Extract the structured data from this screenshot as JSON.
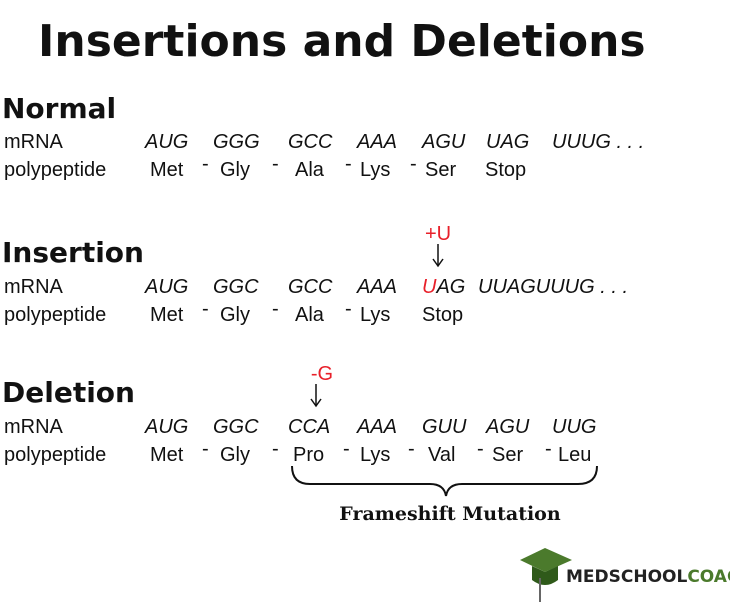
{
  "title": "Insertions and Deletions",
  "separator": "-",
  "sections": [
    {
      "heading": "Normal",
      "mrna_label": "mRNA",
      "polypeptide_label": "polypeptide",
      "codons": [
        "AUG",
        "GGG",
        "GCC",
        "AAA",
        "AGU",
        "UAG",
        "UUUG . . ."
      ],
      "amino_acids": [
        "Met",
        "Gly",
        "Ala",
        "Lys",
        "Ser",
        "Stop"
      ]
    },
    {
      "heading": "Insertion",
      "mutation": "+U",
      "mrna_label": "mRNA",
      "polypeptide_label": "polypeptide",
      "codons": [
        "AUG",
        "GGC",
        "GCC",
        "AAA",
        {
          "marked": "U",
          "rest": "AG"
        },
        "UUAGUUUG . . ."
      ],
      "amino_acids": [
        "Met",
        "Gly",
        "Ala",
        "Lys",
        "Stop"
      ]
    },
    {
      "heading": "Deletion",
      "mutation": "-G",
      "mrna_label": "mRNA",
      "polypeptide_label": "polypeptide",
      "codons": [
        "AUG",
        "GGC",
        "CCA",
        "AAA",
        "GUU",
        "AGU",
        "UUG"
      ],
      "amino_acids": [
        "Met",
        "Gly",
        "Pro",
        "Lys",
        "Val",
        "Ser",
        "Leu"
      ]
    }
  ],
  "frameshift_label": "Frameshift Mutation",
  "brand": {
    "first": "MEDSCHOOL",
    "second": "COACH"
  }
}
